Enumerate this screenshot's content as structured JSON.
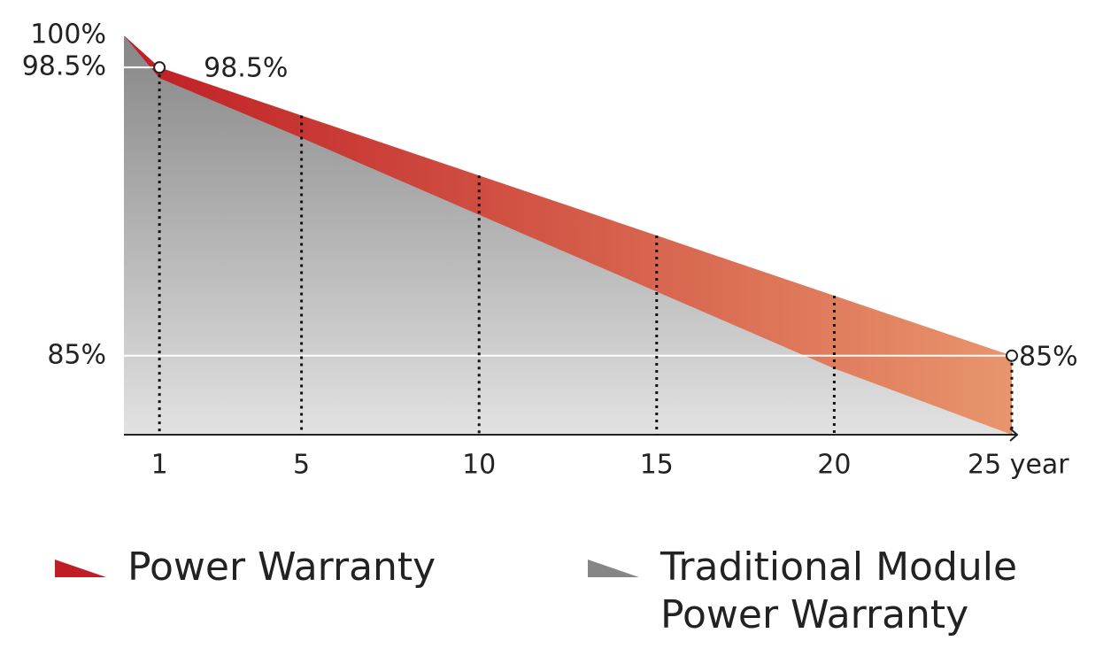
{
  "chart_data": {
    "type": "area",
    "x": [
      0,
      1,
      5,
      10,
      15,
      20,
      25
    ],
    "series": [
      {
        "name": "Power Warranty",
        "color": "#bf1e24",
        "values": [
          100,
          98.5,
          96.25,
          93.44,
          90.63,
          87.81,
          85
        ],
        "value_labels": [
          null,
          "98.5%",
          null,
          null,
          null,
          null,
          "85%"
        ]
      },
      {
        "name": "Traditional Module Power Warranty",
        "color": "#868686",
        "values": [
          100,
          98,
          95.2,
          91.6,
          88,
          84.4,
          81.3
        ]
      }
    ],
    "xlim": [
      0,
      25
    ],
    "xticks": [
      1,
      5,
      10,
      15,
      20,
      {
        "value": 25,
        "label": "25 year"
      }
    ],
    "ylim": [
      81.3,
      100
    ],
    "yticks": [
      {
        "value": 100,
        "label": "100%"
      },
      {
        "value": 98.5,
        "label": "98.5%"
      },
      {
        "value": 85,
        "label": "85%"
      }
    ],
    "grid": true
  }
}
